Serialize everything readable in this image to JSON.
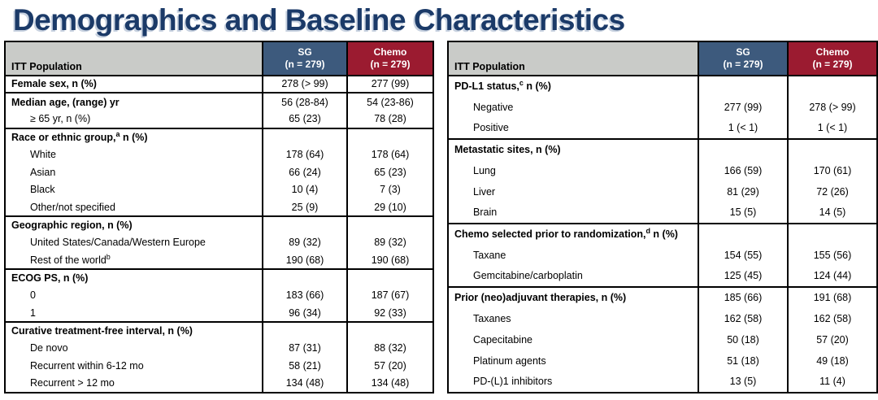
{
  "title": "Demographics and Baseline Characteristics",
  "colors": {
    "title_text": "#1B3A68",
    "sg_header_bg": "#3D5A7D",
    "chemo_header_bg": "#9B1B30",
    "population_header_bg": "#C9CBC8",
    "header_text": "#FFFFFF",
    "border": "#000000"
  },
  "tables": [
    {
      "header": {
        "population_label": "ITT Population",
        "sg_name": "SG",
        "sg_n": "(n = 279)",
        "chemo_name": "Chemo",
        "chemo_n": "(n = 279)"
      },
      "groups": [
        {
          "rows": [
            {
              "pre": "Female sex, n (%)",
              "bold": true,
              "sg": "278 (> 99)",
              "chemo": "277 (99)"
            }
          ]
        },
        {
          "rows": [
            {
              "pre": "Median age, (range) yr",
              "bold": true,
              "sg": "56 (28-84)",
              "chemo": "54 (23-86)"
            },
            {
              "pre": "≥ 65 yr, n (%)",
              "indent": true,
              "sg": "65 (23)",
              "chemo": "78 (28)"
            }
          ]
        },
        {
          "rows": [
            {
              "pre": "Race or ethnic group,",
              "sup": "a",
              "post": " n (%)",
              "bold": true,
              "sg": "",
              "chemo": ""
            },
            {
              "pre": "White",
              "indent": true,
              "sg": "178 (64)",
              "chemo": "178 (64)"
            },
            {
              "pre": "Asian",
              "indent": true,
              "sg": "66 (24)",
              "chemo": "65 (23)"
            },
            {
              "pre": "Black",
              "indent": true,
              "sg": "10 (4)",
              "chemo": "7 (3)"
            },
            {
              "pre": "Other/not specified",
              "indent": true,
              "sg": "25 (9)",
              "chemo": "29 (10)"
            }
          ]
        },
        {
          "rows": [
            {
              "pre": "Geographic region, n (%)",
              "bold": true,
              "sg": "",
              "chemo": ""
            },
            {
              "pre": "United States/Canada/Western Europe",
              "indent": true,
              "sg": "89 (32)",
              "chemo": "89 (32)"
            },
            {
              "pre": "Rest of the world",
              "sup": "b",
              "indent": true,
              "sg": "190 (68)",
              "chemo": "190 (68)"
            }
          ]
        },
        {
          "rows": [
            {
              "pre": "ECOG PS, n (%)",
              "bold": true,
              "sg": "",
              "chemo": ""
            },
            {
              "pre": "0",
              "indent": true,
              "sg": "183 (66)",
              "chemo": "187 (67)"
            },
            {
              "pre": "1",
              "indent": true,
              "sg": "96 (34)",
              "chemo": "92 (33)"
            }
          ]
        },
        {
          "rows": [
            {
              "pre": "Curative treatment-free interval, n (%)",
              "bold": true,
              "sg": "",
              "chemo": ""
            },
            {
              "pre": "De novo",
              "indent": true,
              "sg": "87 (31)",
              "chemo": "88 (32)"
            },
            {
              "pre": "Recurrent within 6-12 mo",
              "indent": true,
              "sg": "58 (21)",
              "chemo": "57 (20)"
            },
            {
              "pre": "Recurrent > 12 mo",
              "indent": true,
              "sg": "134 (48)",
              "chemo": "134 (48)"
            }
          ]
        }
      ]
    },
    {
      "header": {
        "population_label": "ITT Population",
        "sg_name": "SG",
        "sg_n": "(n = 279)",
        "chemo_name": "Chemo",
        "chemo_n": "(n = 279)"
      },
      "groups": [
        {
          "rows": [
            {
              "pre": "PD-L1 status,",
              "sup": "c",
              "post": " n (%)",
              "bold": true,
              "sg": "",
              "chemo": ""
            },
            {
              "pre": "Negative",
              "indent": true,
              "sg": "277 (99)",
              "chemo": "278 (> 99)"
            },
            {
              "pre": "Positive",
              "indent": true,
              "sg": "1 (< 1)",
              "chemo": "1 (< 1)"
            }
          ]
        },
        {
          "rows": [
            {
              "pre": "Metastatic sites, n (%)",
              "bold": true,
              "sg": "",
              "chemo": ""
            },
            {
              "pre": "Lung",
              "indent": true,
              "sg": "166 (59)",
              "chemo": "170 (61)"
            },
            {
              "pre": "Liver",
              "indent": true,
              "sg": "81 (29)",
              "chemo": "72 (26)"
            },
            {
              "pre": "Brain",
              "indent": true,
              "sg": "15 (5)",
              "chemo": "14 (5)"
            }
          ]
        },
        {
          "rows": [
            {
              "pre": "Chemo selected prior to randomization,",
              "sup": "d",
              "post": " n (%)",
              "bold": true,
              "sg": "",
              "chemo": ""
            },
            {
              "pre": "Taxane",
              "indent": true,
              "sg": "154 (55)",
              "chemo": "155 (56)"
            },
            {
              "pre": "Gemcitabine/carboplatin",
              "indent": true,
              "sg": "125 (45)",
              "chemo": "124 (44)"
            }
          ]
        },
        {
          "rows": [
            {
              "pre": "Prior (neo)adjuvant therapies, n (%)",
              "bold": true,
              "sg": "185 (66)",
              "chemo": "191 (68)"
            },
            {
              "pre": "Taxanes",
              "indent": true,
              "sg": "162 (58)",
              "chemo": "162 (58)"
            },
            {
              "pre": "Capecitabine",
              "indent": true,
              "sg": "50 (18)",
              "chemo": "57 (20)"
            },
            {
              "pre": "Platinum agents",
              "indent": true,
              "sg": "51 (18)",
              "chemo": "49 (18)"
            },
            {
              "pre": "PD-(L)1 inhibitors",
              "indent": true,
              "sg": "13 (5)",
              "chemo": "11 (4)"
            }
          ]
        }
      ]
    }
  ]
}
